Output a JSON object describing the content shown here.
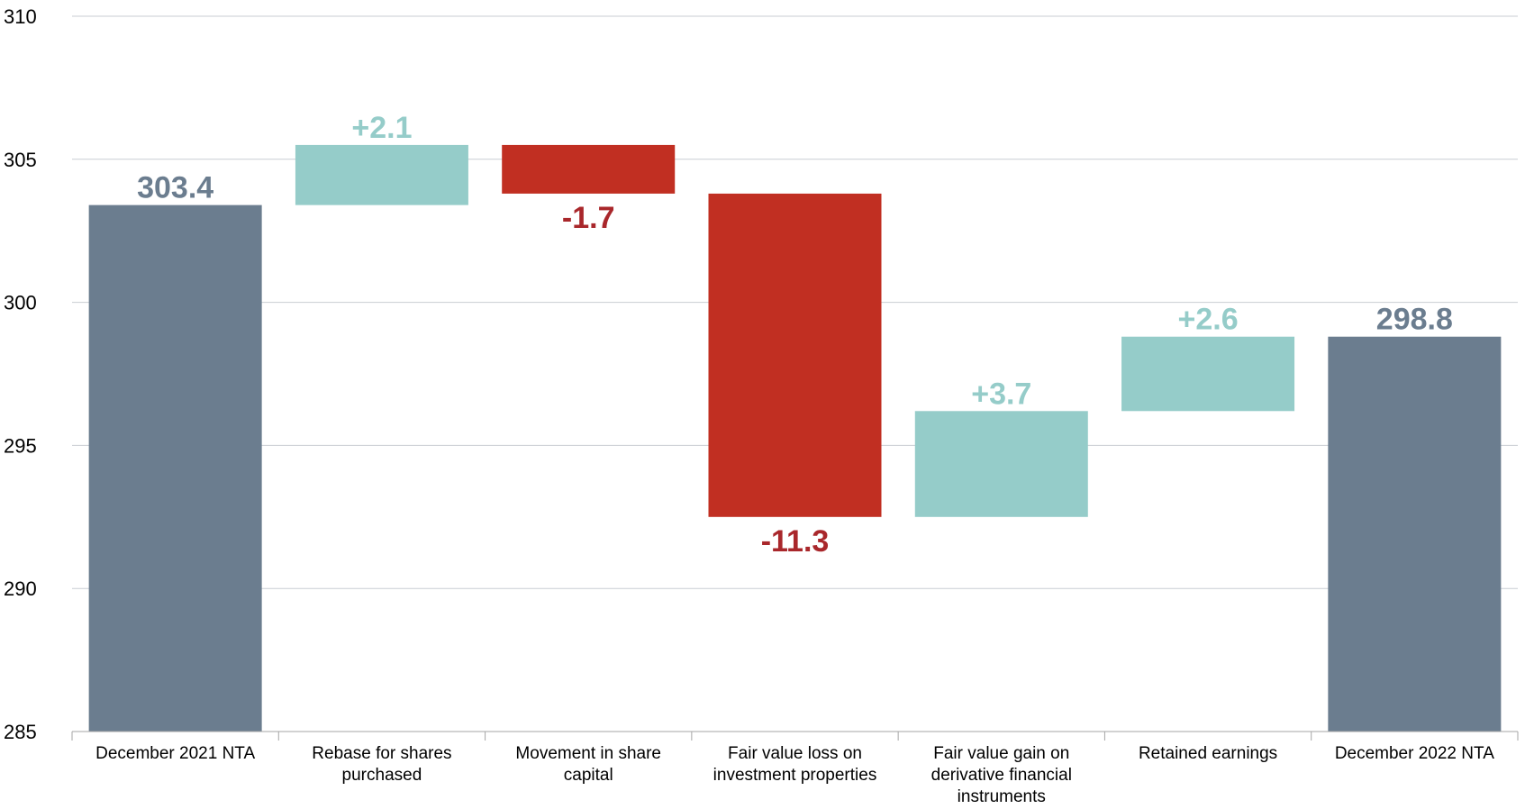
{
  "chart_data": {
    "type": "bar",
    "subtype": "waterfall",
    "title": "",
    "xlabel": "",
    "ylabel": "",
    "ylim": [
      285,
      310
    ],
    "yticks": [
      "310",
      "305",
      "300",
      "295",
      "290",
      "285"
    ],
    "grid": true,
    "legend": "none",
    "categories": [
      [
        "December 2021 NTA"
      ],
      [
        "Rebase for shares",
        "purchased"
      ],
      [
        "Movement in share",
        "capital"
      ],
      [
        "Fair value loss on",
        "investment properties"
      ],
      [
        "Fair value gain on",
        "derivative financial",
        "instruments"
      ],
      [
        "Retained earnings"
      ],
      [
        "December 2022 NTA"
      ]
    ],
    "bars": [
      {
        "kind": "total",
        "start": 285,
        "end": 303.4,
        "label": "303.4"
      },
      {
        "kind": "increase",
        "start": 303.4,
        "end": 305.5,
        "label": "+2.1"
      },
      {
        "kind": "decrease",
        "start": 305.5,
        "end": 303.8,
        "label": "-1.7"
      },
      {
        "kind": "decrease",
        "start": 303.8,
        "end": 292.5,
        "label": "-11.3"
      },
      {
        "kind": "increase",
        "start": 292.5,
        "end": 296.2,
        "label": "+3.7"
      },
      {
        "kind": "increase",
        "start": 296.2,
        "end": 298.8,
        "label": "+2.6"
      },
      {
        "kind": "total",
        "start": 285,
        "end": 298.8,
        "label": "298.8"
      }
    ],
    "colors": {
      "total": "#6b7d8f",
      "increase": "#95ccc9",
      "decrease": "#c12f22",
      "total_label": "#6b7d8f",
      "increase_label": "#95ccc9",
      "decrease_label": "#a9272b",
      "grid": "#c9cdd3",
      "axis": "#a6a6a6"
    }
  }
}
